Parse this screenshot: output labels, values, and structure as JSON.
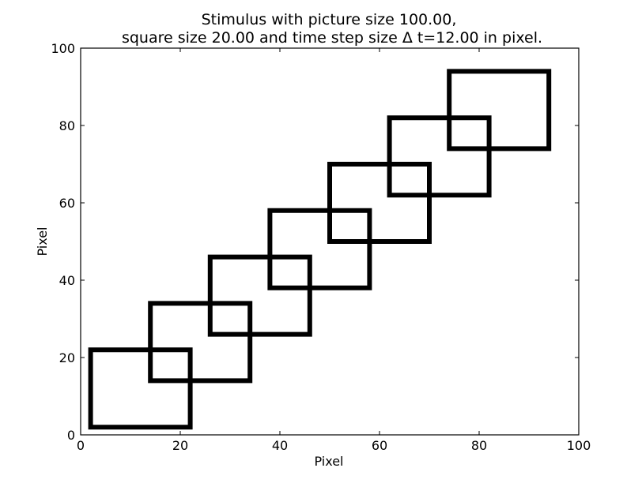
{
  "chart_data": {
    "type": "line",
    "title_lines": [
      "Stimulus with picture size 100.00,",
      "square size 20.00 and time step size Δ t=12.00 in pixel."
    ],
    "xlabel": "Pixel",
    "ylabel": "Pixel",
    "xlim": [
      0,
      100
    ],
    "ylim": [
      0,
      100
    ],
    "xticks": [
      0,
      20,
      40,
      60,
      80,
      100
    ],
    "yticks": [
      0,
      20,
      40,
      60,
      80,
      100
    ],
    "grid": false,
    "series": [
      {
        "x": [
          2,
          22,
          22,
          2,
          2
        ],
        "y": [
          2,
          2,
          22,
          22,
          2
        ]
      },
      {
        "x": [
          14,
          34,
          34,
          14,
          14
        ],
        "y": [
          14,
          14,
          34,
          34,
          14
        ]
      },
      {
        "x": [
          26,
          46,
          46,
          26,
          26
        ],
        "y": [
          26,
          26,
          46,
          46,
          26
        ]
      },
      {
        "x": [
          38,
          58,
          58,
          38,
          38
        ],
        "y": [
          38,
          38,
          58,
          58,
          38
        ]
      },
      {
        "x": [
          50,
          70,
          70,
          50,
          50
        ],
        "y": [
          50,
          50,
          70,
          70,
          50
        ]
      },
      {
        "x": [
          62,
          82,
          82,
          62,
          62
        ],
        "y": [
          62,
          62,
          82,
          82,
          62
        ]
      },
      {
        "x": [
          74,
          94,
          94,
          74,
          74
        ],
        "y": [
          74,
          74,
          94,
          94,
          74
        ]
      }
    ],
    "line_color": "#000000"
  }
}
